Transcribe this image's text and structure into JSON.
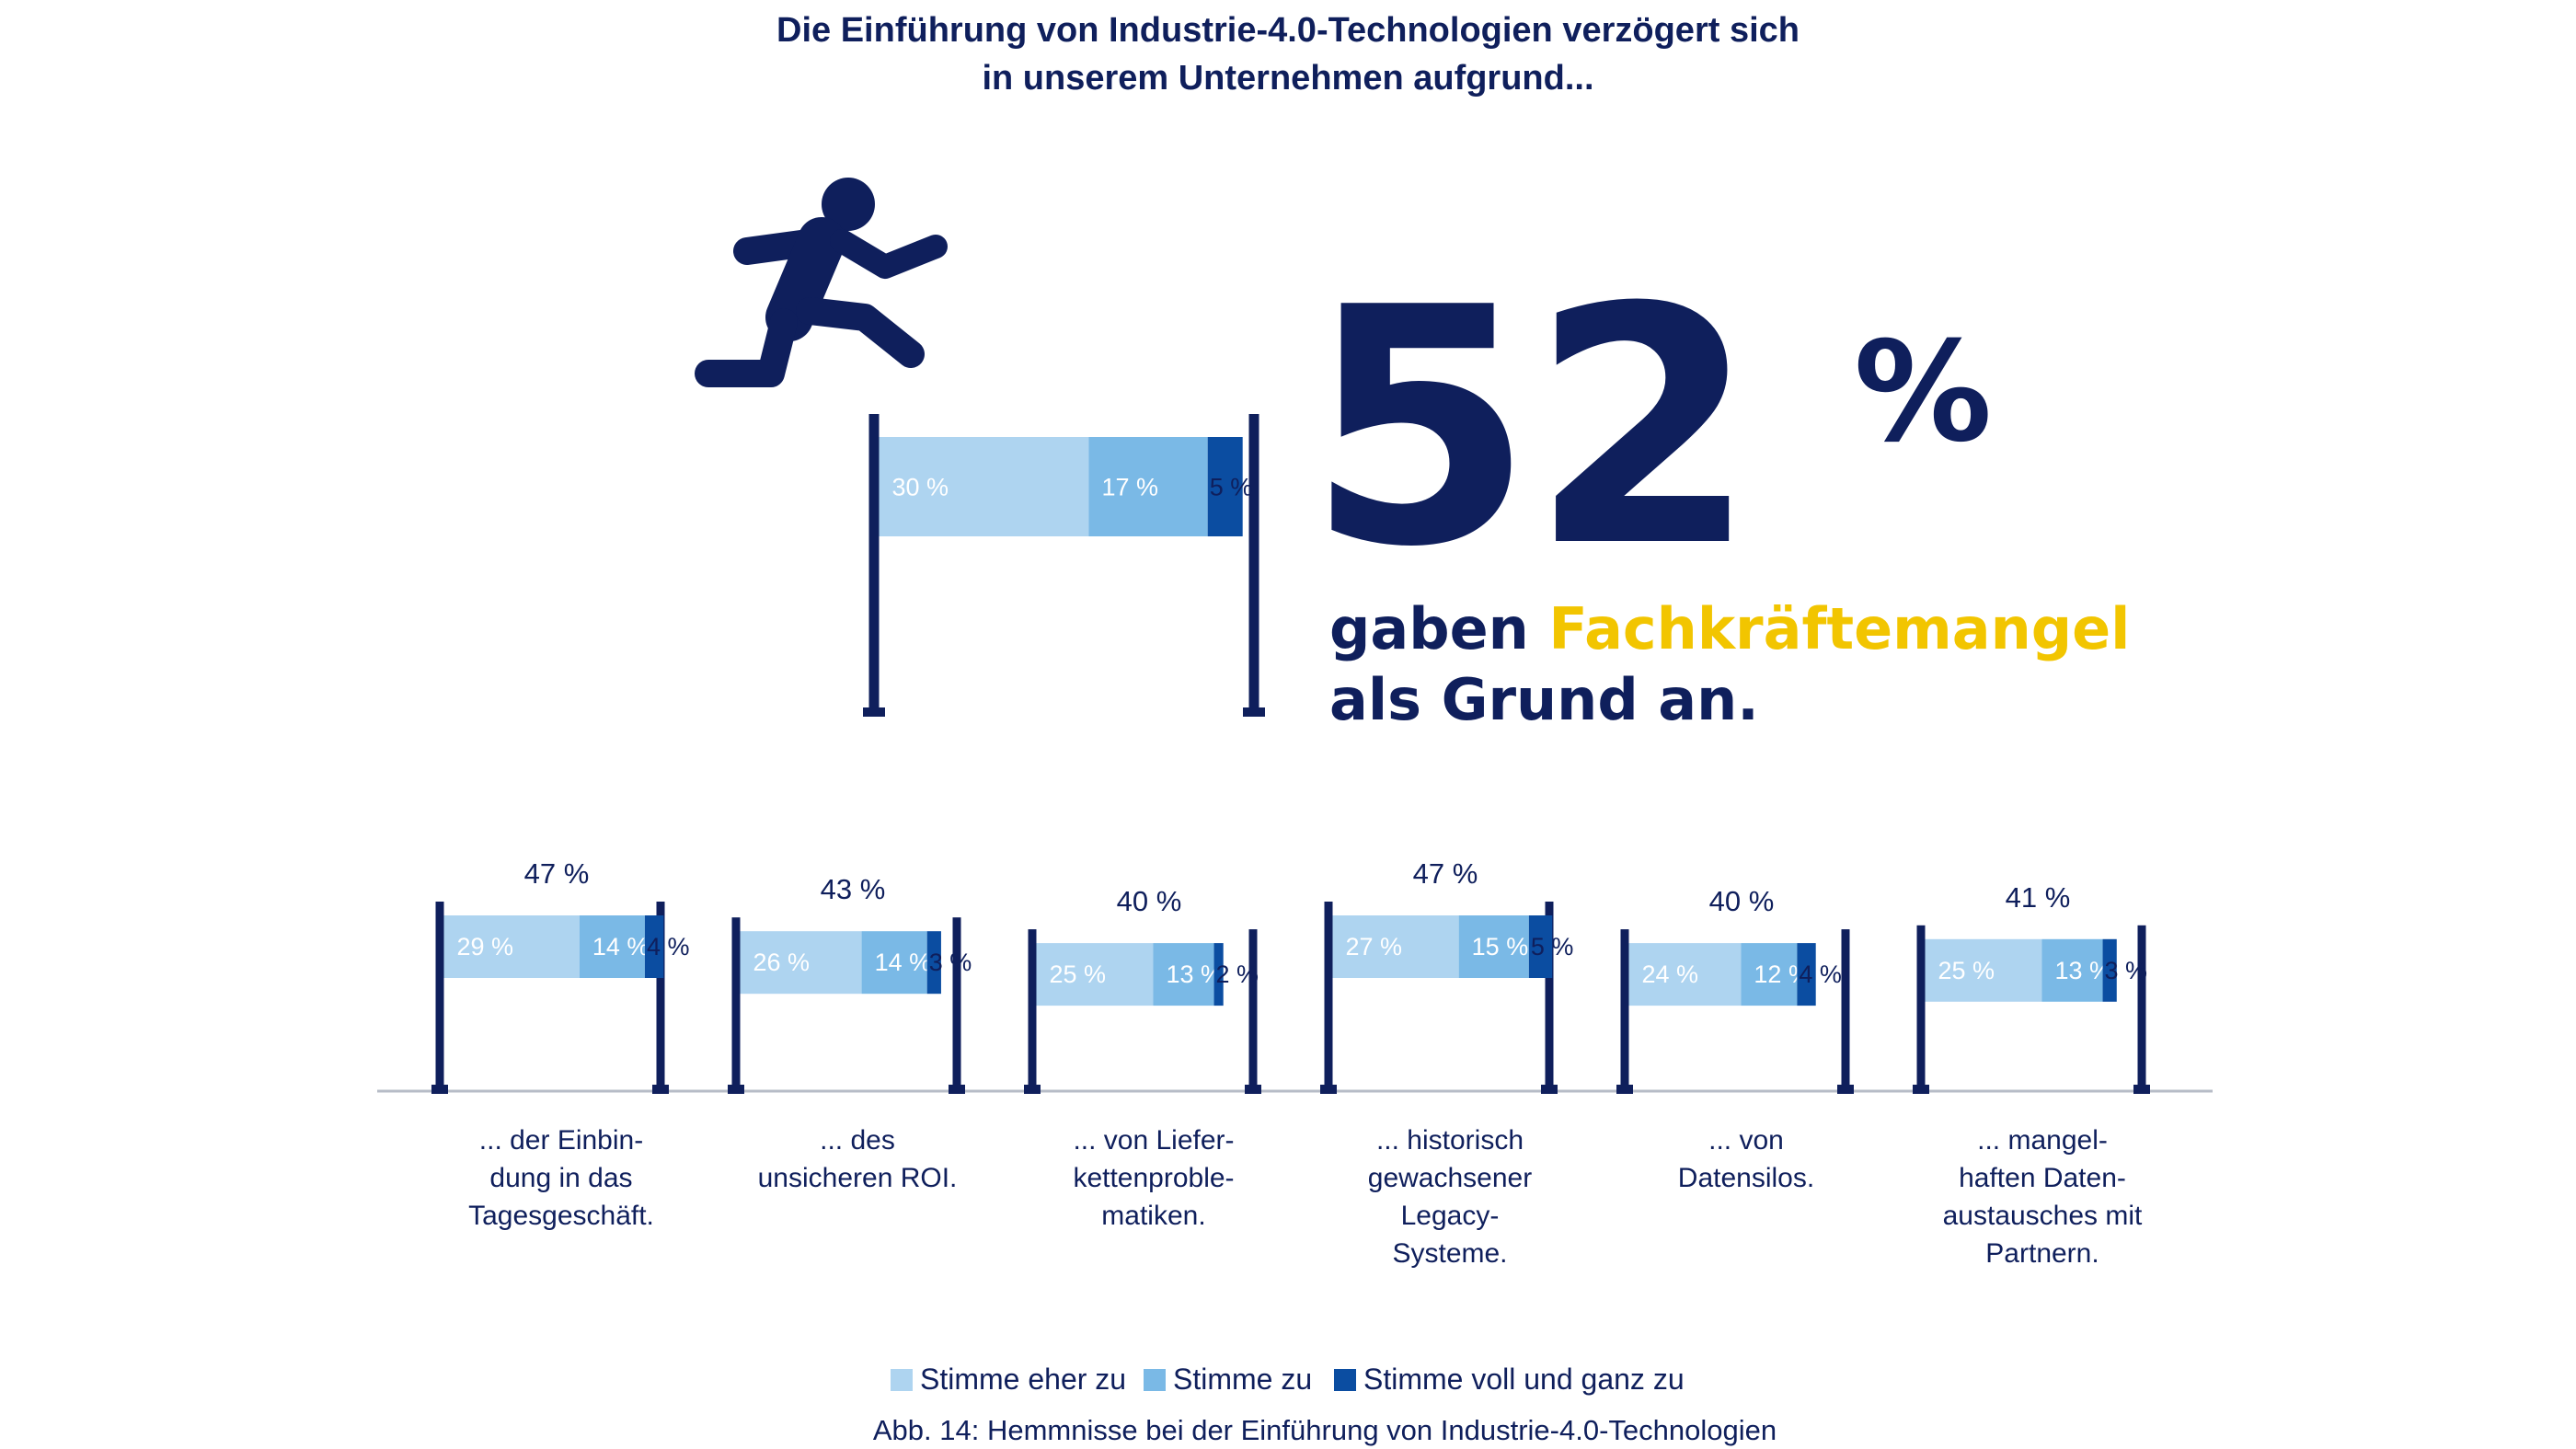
{
  "title": {
    "line1": "Die Einführung von Industrie-4.0-Technologien verzögert sich",
    "line2": "in unserem Unternehmen aufgrund..."
  },
  "highlight": {
    "value": "52",
    "unit": "%",
    "text_before": "gaben ",
    "text_accent": "Fachkräftemangel",
    "text_line2": "als Grund an.",
    "accent_color": "#f2c500"
  },
  "icons": {
    "runner": "hurdler-icon"
  },
  "colors": {
    "navy": "#0f1f5c",
    "light": "#aed4f0",
    "medium": "#7ab9e6",
    "dark": "#0b4da1",
    "axis": "#b7bcc7"
  },
  "chart_data": {
    "type": "bar",
    "stacked": true,
    "orientation": "horizontal",
    "legend_position": "bottom",
    "series": [
      {
        "name": "Stimme eher zu",
        "color": "#aed4f0"
      },
      {
        "name": "Stimme zu",
        "color": "#7ab9e6"
      },
      {
        "name": "Stimme voll und ganz zu",
        "color": "#0b4da1"
      }
    ],
    "featured": {
      "category": "Fachkräftemangel",
      "values": [
        30,
        17,
        5
      ],
      "labels": [
        "30 %",
        "17 %",
        "5 %"
      ],
      "total": 52
    },
    "categories": [
      {
        "lines": [
          "... der Einbin-",
          "dung in das",
          "Tagesgeschäft."
        ],
        "values": [
          29,
          14,
          4
        ],
        "labels": [
          "29 %",
          "14 %",
          "4 %"
        ],
        "total": 47,
        "total_label": "47 %"
      },
      {
        "lines": [
          "... des",
          "unsicheren ROI."
        ],
        "values": [
          26,
          14,
          3
        ],
        "labels": [
          "26 %",
          "14 %",
          "3 %"
        ],
        "total": 43,
        "total_label": "43 %"
      },
      {
        "lines": [
          "... von Liefer-",
          "kettenproble-",
          "matiken."
        ],
        "values": [
          25,
          13,
          2
        ],
        "labels": [
          "25 %",
          "13 %",
          "2 %"
        ],
        "total": 40,
        "total_label": "40 %"
      },
      {
        "lines": [
          "... historisch",
          "gewachsener",
          "Legacy-",
          "Systeme."
        ],
        "values": [
          27,
          15,
          5
        ],
        "labels": [
          "27 %",
          "15 %",
          "5 %"
        ],
        "total": 47,
        "total_label": "47 %"
      },
      {
        "lines": [
          "... von",
          "Datensilos."
        ],
        "values": [
          24,
          12,
          4
        ],
        "labels": [
          "24 %",
          "12 %",
          "4 %"
        ],
        "total": 40,
        "total_label": "40 %"
      },
      {
        "lines": [
          "... mangel-",
          "haften Daten-",
          "austausches mit",
          "Partnern."
        ],
        "values": [
          25,
          13,
          3
        ],
        "labels": [
          "25 %",
          "13 %",
          "3 %"
        ],
        "total": 41,
        "total_label": "41 %"
      }
    ]
  },
  "caption": "Abb. 14: Hemmnisse bei der Einführung von Industrie-4.0-Technologien"
}
